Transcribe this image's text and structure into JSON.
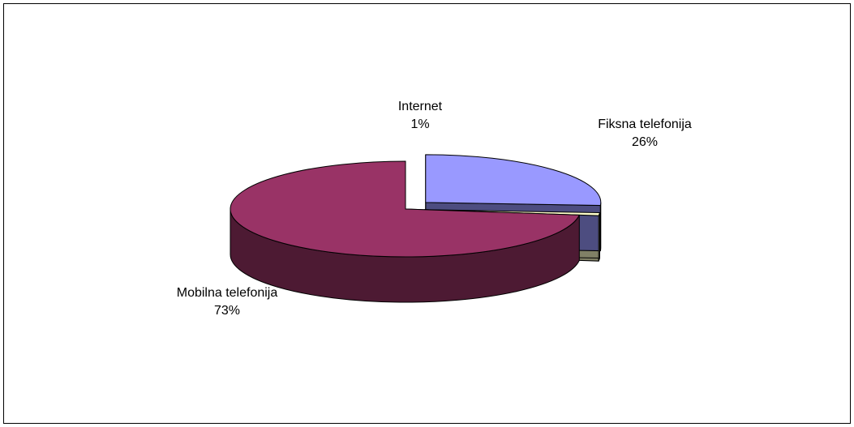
{
  "chart_data": {
    "type": "pie",
    "style": "3d-exploded",
    "title": "",
    "slices": [
      {
        "label": "Fiksna telefonija",
        "value": 26,
        "value_label": "26%",
        "color": "#9999ff",
        "side_color": "#4d4d80"
      },
      {
        "label": "Internet",
        "value": 1,
        "value_label": "1%",
        "color": "#ffffcc",
        "side_color": "#808066"
      },
      {
        "label": "Mobilna telefonija",
        "value": 73,
        "value_label": "73%",
        "color": "#993366",
        "side_color": "#4d1a33"
      }
    ]
  }
}
